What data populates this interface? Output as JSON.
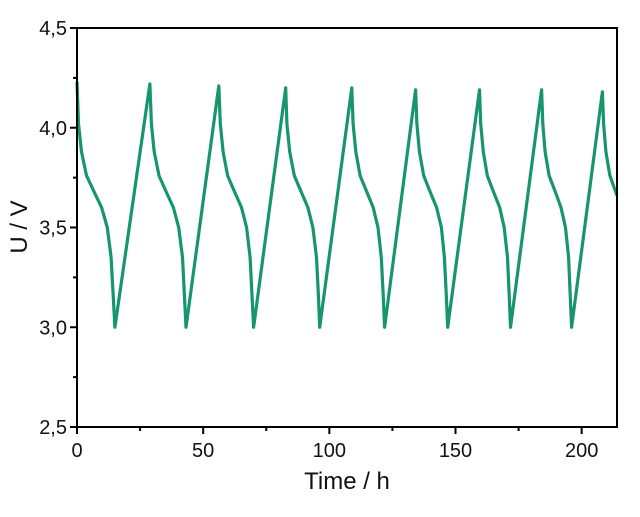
{
  "chart_data": {
    "type": "line",
    "title": "",
    "xlabel": "Time / h",
    "ylabel": "U / V",
    "xlim": [
      0,
      214
    ],
    "ylim": [
      2.5,
      4.5
    ],
    "xticks": [
      0,
      50,
      100,
      150,
      200
    ],
    "xtick_labels": [
      "0",
      "50",
      "100",
      "150",
      "200"
    ],
    "yticks": [
      2.5,
      3.0,
      3.5,
      4.0,
      4.5
    ],
    "ytick_labels": [
      "2,5",
      "3,0",
      "3,5",
      "4,0",
      "4,5"
    ],
    "grid": false,
    "line_color": "#16956f",
    "series": [
      {
        "x": [
          0,
          0.6,
          1.8,
          3.75,
          6.75,
          9.75,
          12,
          13.5,
          14.4,
          15,
          28.9,
          29.5,
          30.6,
          32.5,
          35.3,
          38.2,
          40.3,
          41.8,
          42.6,
          43.2,
          56.2,
          56.8,
          57.9,
          59.7,
          62.4,
          65.2,
          67.2,
          68.6,
          69.4,
          70,
          82.7,
          83.2,
          84.3,
          86.1,
          88.8,
          91.5,
          93.5,
          94.9,
          95.7,
          96.2,
          108.9,
          109.4,
          110.5,
          112.2,
          114.8,
          117.4,
          119.3,
          120.6,
          121.4,
          121.9,
          134.2,
          134.7,
          135.7,
          137.4,
          139.9,
          142.5,
          144.4,
          145.6,
          146.4,
          146.9,
          159.5,
          160,
          161,
          162.6,
          165,
          167.5,
          169.3,
          170.6,
          171.3,
          171.8,
          184.1,
          184.6,
          185.5,
          187.1,
          189.5,
          191.8,
          193.6,
          194.8,
          195.5,
          196,
          208.2,
          208.7,
          209.6,
          211.2,
          214
        ],
        "y": [
          4.23,
          4.02,
          3.88,
          3.76,
          3.68,
          3.6,
          3.5,
          3.35,
          3.15,
          3.0,
          4.22,
          4.02,
          3.88,
          3.76,
          3.68,
          3.6,
          3.5,
          3.35,
          3.15,
          3.0,
          4.21,
          4.02,
          3.88,
          3.76,
          3.68,
          3.6,
          3.5,
          3.35,
          3.15,
          3.0,
          4.2,
          4.02,
          3.88,
          3.76,
          3.68,
          3.6,
          3.5,
          3.35,
          3.15,
          3.0,
          4.2,
          4.02,
          3.88,
          3.76,
          3.68,
          3.6,
          3.5,
          3.35,
          3.15,
          3.0,
          4.19,
          4.02,
          3.88,
          3.76,
          3.68,
          3.6,
          3.5,
          3.35,
          3.15,
          3.0,
          4.19,
          4.02,
          3.88,
          3.76,
          3.68,
          3.6,
          3.5,
          3.35,
          3.15,
          3.0,
          4.19,
          4.02,
          3.88,
          3.76,
          3.68,
          3.6,
          3.5,
          3.35,
          3.15,
          3.0,
          4.18,
          4.02,
          3.88,
          3.76,
          3.66
        ]
      }
    ]
  }
}
